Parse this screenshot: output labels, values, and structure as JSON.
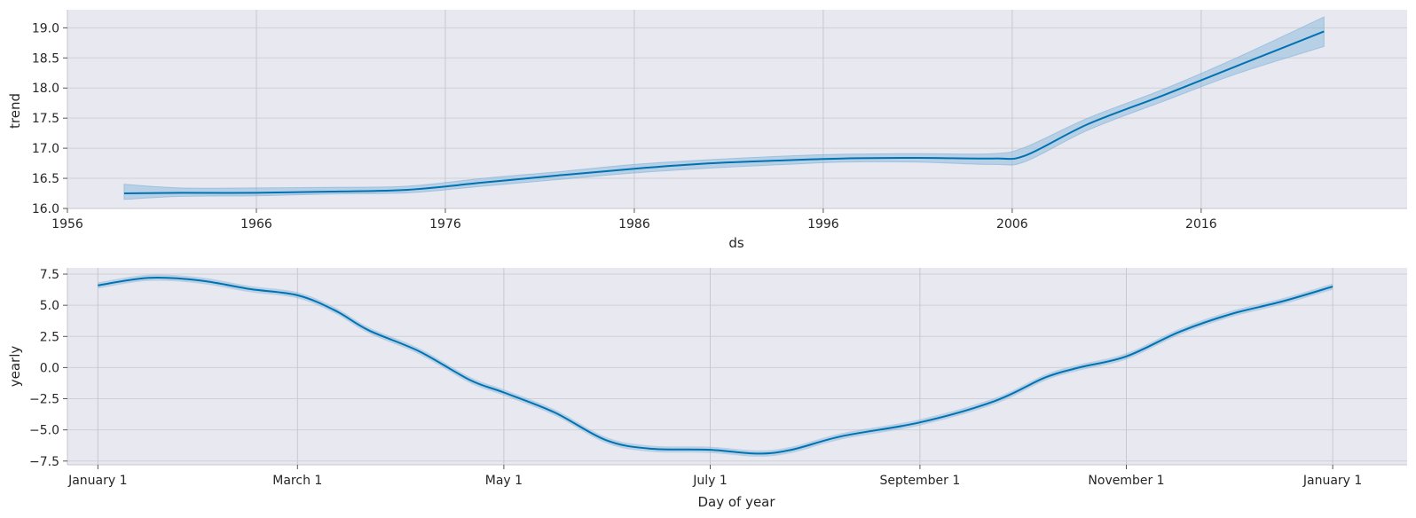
{
  "chart_data": [
    {
      "type": "area",
      "title": "",
      "xlabel": "ds",
      "ylabel": "trend",
      "xlim": [
        1956,
        2026.9
      ],
      "ylim": [
        16.0,
        19.3
      ],
      "x_ticks": [
        1956,
        1966,
        1976,
        1986,
        1996,
        2006,
        2016
      ],
      "x_tick_labels": [
        "1956",
        "1966",
        "1976",
        "1986",
        "1996",
        "2006",
        "2016"
      ],
      "y_ticks": [
        16.0,
        16.5,
        17.0,
        17.5,
        18.0,
        18.5,
        19.0
      ],
      "y_tick_labels": [
        "16.0",
        "16.5",
        "17.0",
        "17.5",
        "18.0",
        "18.5",
        "19.0"
      ],
      "grid": true,
      "colors": {
        "line": "#0072b2",
        "band": "#7fb3d8"
      },
      "series": [
        {
          "x": [
            1959,
            1962,
            1966,
            1970,
            1974,
            1978,
            1982,
            1986,
            1990,
            1994,
            1997,
            2001,
            2005,
            2006.7,
            2010,
            2014,
            2018,
            2022.5
          ],
          "y": [
            16.25,
            16.26,
            16.26,
            16.28,
            16.31,
            16.43,
            16.55,
            16.66,
            16.75,
            16.8,
            16.83,
            16.84,
            16.83,
            16.88,
            17.4,
            17.88,
            18.38,
            18.94
          ],
          "lower": [
            16.15,
            16.2,
            16.21,
            16.24,
            16.26,
            16.37,
            16.48,
            16.59,
            16.67,
            16.73,
            16.77,
            16.77,
            16.73,
            16.78,
            17.3,
            17.78,
            18.25,
            18.69
          ],
          "upper": [
            16.4,
            16.34,
            16.34,
            16.35,
            16.37,
            16.5,
            16.61,
            16.73,
            16.81,
            16.87,
            16.9,
            16.91,
            16.91,
            17.02,
            17.5,
            17.98,
            18.52,
            19.18
          ]
        }
      ]
    },
    {
      "type": "line",
      "title": "",
      "xlabel": "Day of year",
      "ylabel": "yearly",
      "xlim": [
        -9,
        387
      ],
      "ylim": [
        -7.8,
        8.0
      ],
      "x_ticks": [
        0,
        59,
        120,
        181,
        243,
        304,
        365
      ],
      "x_tick_labels": [
        "January 1",
        "March 1",
        "May 1",
        "July 1",
        "September 1",
        "November 1",
        "January 1"
      ],
      "y_ticks": [
        -7.5,
        -5.0,
        -2.5,
        0.0,
        2.5,
        5.0,
        7.5
      ],
      "y_tick_labels": [
        "−7.5",
        "−5.0",
        "−2.5",
        "0.0",
        "2.5",
        "5.0",
        "7.5"
      ],
      "grid": true,
      "colors": {
        "line": "#0072b2",
        "band": "#7fb3d8"
      },
      "series": [
        {
          "x": [
            0,
            15,
            30,
            45,
            59,
            70,
            80,
            95,
            110,
            120,
            135,
            150,
            163,
            181,
            195,
            205,
            220,
            243,
            265,
            280,
            290,
            304,
            320,
            335,
            350,
            365
          ],
          "y": [
            6.6,
            7.2,
            7.0,
            6.3,
            5.8,
            4.6,
            3.0,
            1.3,
            -1.0,
            -2.0,
            -3.6,
            -5.8,
            -6.5,
            -6.6,
            -6.9,
            -6.6,
            -5.5,
            -4.4,
            -2.7,
            -0.8,
            0.0,
            0.9,
            2.9,
            4.3,
            5.3,
            6.5
          ],
          "band": 0.25
        }
      ]
    }
  ]
}
